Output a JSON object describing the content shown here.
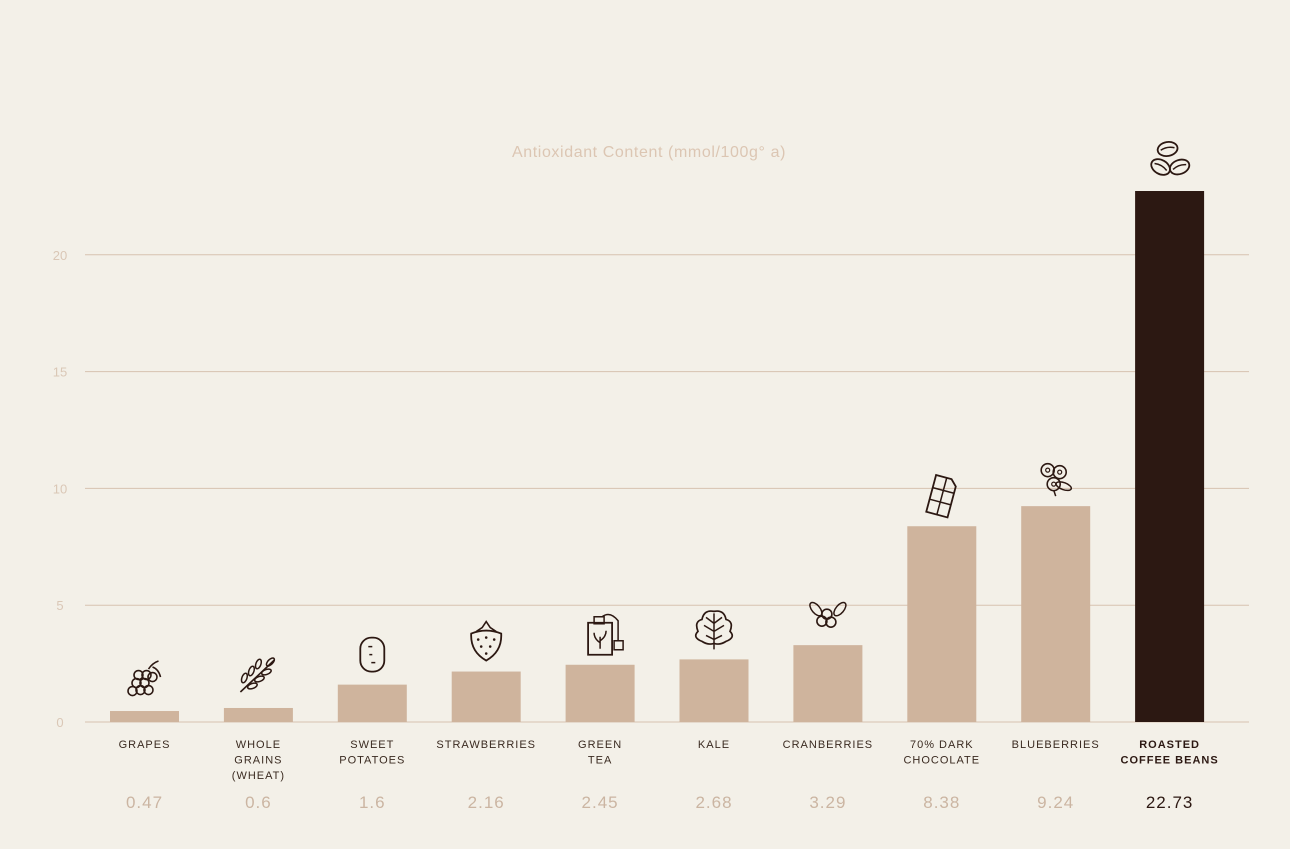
{
  "chart_data": {
    "type": "bar",
    "title": "Antioxidant Content (mmol/100g° a)",
    "xlabel": "",
    "ylabel": "",
    "ylim": [
      0,
      22.73
    ],
    "yticks": [
      0,
      5,
      10,
      15,
      20
    ],
    "grid": true,
    "categories": [
      {
        "lines": [
          "GRAPES"
        ],
        "value_label": "0.47",
        "icon": "grapes-icon",
        "highlight": false
      },
      {
        "lines": [
          "WHOLE",
          "GRAINS",
          "(WHEAT)"
        ],
        "value_label": "0.6",
        "icon": "wheat-icon",
        "highlight": false
      },
      {
        "lines": [
          "SWEET",
          "POTATOES"
        ],
        "value_label": "1.6",
        "icon": "potato-icon",
        "highlight": false
      },
      {
        "lines": [
          "STRAWBERRIES"
        ],
        "value_label": "2.16",
        "icon": "strawberry-icon",
        "highlight": false
      },
      {
        "lines": [
          "GREEN",
          "TEA"
        ],
        "value_label": "2.45",
        "icon": "tea-bag-icon",
        "highlight": false
      },
      {
        "lines": [
          "KALE"
        ],
        "value_label": "2.68",
        "icon": "kale-icon",
        "highlight": false
      },
      {
        "lines": [
          "CRANBERRIES"
        ],
        "value_label": "3.29",
        "icon": "cranberries-icon",
        "highlight": false
      },
      {
        "lines": [
          "70% DARK",
          "CHOCOLATE"
        ],
        "value_label": "8.38",
        "icon": "chocolate-bar-icon",
        "highlight": false
      },
      {
        "lines": [
          "BLUEBERRIES"
        ],
        "value_label": "9.24",
        "icon": "blueberries-icon",
        "highlight": false
      },
      {
        "lines": [
          "ROASTED",
          "COFFEE BEANS"
        ],
        "value_label": "22.73",
        "icon": "coffee-beans-icon",
        "highlight": true
      }
    ],
    "values": [
      0.47,
      0.6,
      1.6,
      2.16,
      2.45,
      2.68,
      3.29,
      8.38,
      9.24,
      22.73
    ]
  },
  "colors": {
    "background": "#f3f0e8",
    "bar": "#cfb49d",
    "bar_highlight": "#2c1812",
    "grid": "#d7c2b0",
    "title": "#dcc6b3",
    "tick": "#dac7b6",
    "label": "#3a2a20",
    "label_highlight": "#2c1812",
    "value": "#cbb5a2",
    "icon": "#2c1812"
  }
}
